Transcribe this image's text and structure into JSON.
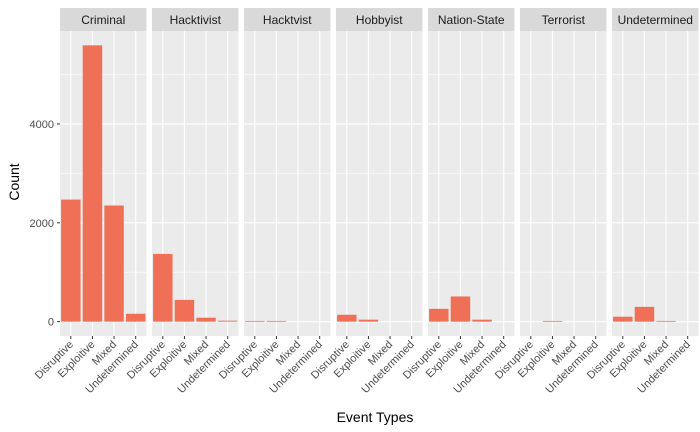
{
  "chart_data": {
    "type": "bar",
    "xlabel": "Event Types",
    "ylabel": "Count",
    "ylim": [
      -290,
      5880
    ],
    "yticks": [
      0,
      2000,
      4000
    ],
    "ytick_labels": [
      "0",
      "2000",
      "4000"
    ],
    "grid": true,
    "bar_color": "#F07057",
    "panel_bg": "#EBEBEB",
    "strip_bg": "#D9D9D9",
    "categories": [
      "Disruptive",
      "Exploitive",
      "Mixed",
      "Undetermined"
    ],
    "facets": [
      {
        "name": "Criminal",
        "values": [
          2470,
          5590,
          2350,
          160
        ]
      },
      {
        "name": "Hacktivist",
        "values": [
          1370,
          440,
          80,
          20
        ]
      },
      {
        "name": "Hacktvist",
        "values": [
          15,
          15,
          0,
          0
        ]
      },
      {
        "name": "Hobbyist",
        "values": [
          140,
          40,
          0,
          0
        ]
      },
      {
        "name": "Nation-State",
        "values": [
          260,
          510,
          40,
          0
        ]
      },
      {
        "name": "Terrorist",
        "values": [
          0,
          15,
          0,
          0
        ]
      },
      {
        "name": "Undetermined",
        "values": [
          100,
          300,
          15,
          0
        ]
      }
    ]
  }
}
